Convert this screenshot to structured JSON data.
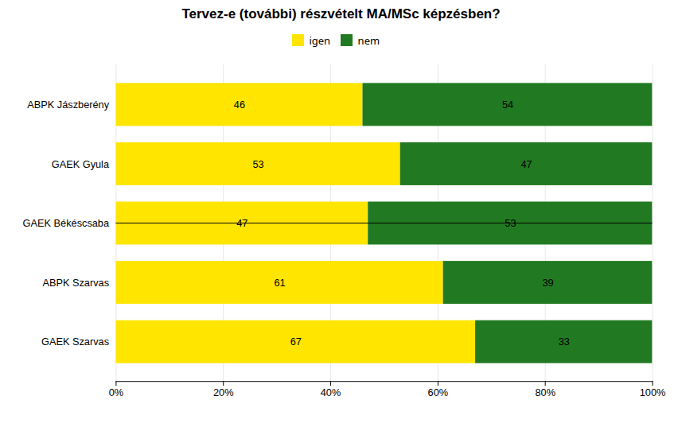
{
  "chart_data": {
    "type": "bar",
    "orientation": "horizontal",
    "stacked": true,
    "title": "Tervez-e (további) részvételt MA/MSc képzésben?",
    "categories": [
      "GAEK Szarvas",
      "ABPK Szarvas",
      "GAEK Békéscsaba",
      "GAEK Gyula",
      "ABPK Jászberény"
    ],
    "series": [
      {
        "name": "igen",
        "color": "#FFE500",
        "values": [
          67,
          61,
          47,
          53,
          46
        ]
      },
      {
        "name": "nem",
        "color": "#217A21",
        "values": [
          33,
          39,
          53,
          47,
          54
        ]
      }
    ],
    "xlim": [
      0,
      100
    ],
    "xticks": [
      {
        "value": 0,
        "label": "0%"
      },
      {
        "value": 20,
        "label": "20%"
      },
      {
        "value": 40,
        "label": "40%"
      },
      {
        "value": 60,
        "label": "60%"
      },
      {
        "value": 80,
        "label": "80%"
      },
      {
        "value": 100,
        "label": "100%"
      }
    ],
    "grid": true,
    "legend": "top",
    "data_labels": true
  }
}
